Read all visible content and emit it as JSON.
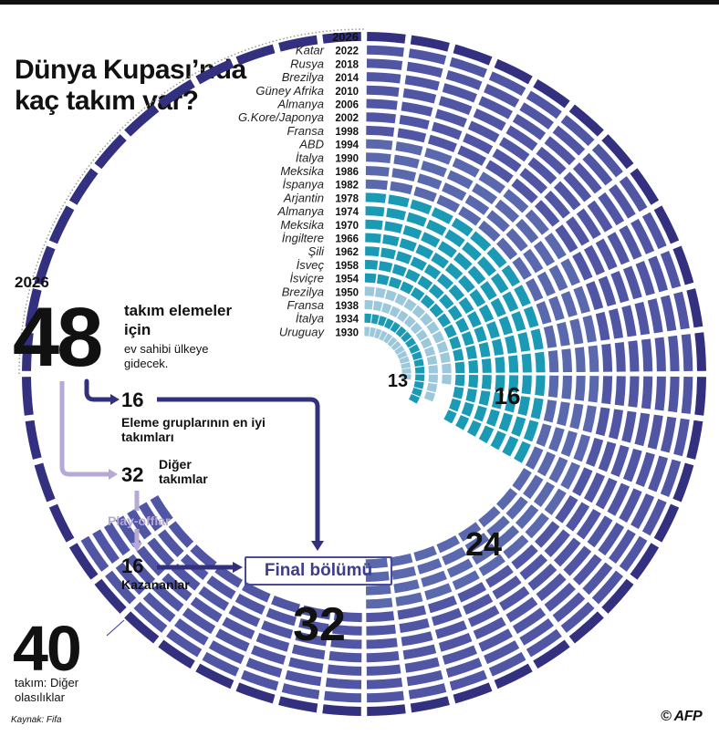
{
  "title_lines": [
    "Dünya Kupası’nda",
    "kaç takım var?"
  ],
  "colors": {
    "t13": "#9cc8dc",
    "t16": "#1a9ab5",
    "t24": "#5a69ad",
    "t32": "#5056a4",
    "t48": "#33307f",
    "purple_light": "#b6a9d6",
    "navy": "#3d3d8f",
    "dotted": "#999999"
  },
  "chart_data": {
    "type": "radial bar",
    "tournaments": [
      {
        "host": "",
        "year": "2026",
        "teams": 48
      },
      {
        "host": "Katar",
        "year": "2022",
        "teams": 32
      },
      {
        "host": "Rusya",
        "year": "2018",
        "teams": 32
      },
      {
        "host": "Brezilya",
        "year": "2014",
        "teams": 32
      },
      {
        "host": "Güney Afrika",
        "year": "2010",
        "teams": 32
      },
      {
        "host": "Almanya",
        "year": "2006",
        "teams": 32
      },
      {
        "host": "G.Kore/Japonya",
        "year": "2002",
        "teams": 32
      },
      {
        "host": "Fransa",
        "year": "1998",
        "teams": 32
      },
      {
        "host": "ABD",
        "year": "1994",
        "teams": 24
      },
      {
        "host": "İtalya",
        "year": "1990",
        "teams": 24
      },
      {
        "host": "Meksika",
        "year": "1986",
        "teams": 24
      },
      {
        "host": "İspanya",
        "year": "1982",
        "teams": 24
      },
      {
        "host": "Arjantin",
        "year": "1978",
        "teams": 16
      },
      {
        "host": "Almanya",
        "year": "1974",
        "teams": 16
      },
      {
        "host": "Meksika",
        "year": "1970",
        "teams": 16
      },
      {
        "host": "İngiltere",
        "year": "1966",
        "teams": 16
      },
      {
        "host": "Şili",
        "year": "1962",
        "teams": 16
      },
      {
        "host": "İsveç",
        "year": "1958",
        "teams": 16
      },
      {
        "host": "İsviçre",
        "year": "1954",
        "teams": 16
      },
      {
        "host": "Brezilya",
        "year": "1950",
        "teams": 13
      },
      {
        "host": "Fransa",
        "year": "1938",
        "teams": 15
      },
      {
        "host": "İtalya",
        "year": "1934",
        "teams": 16
      },
      {
        "host": "Uruguay",
        "year": "1930",
        "teams": 13
      }
    ],
    "count_labels": [
      "13",
      "16",
      "24",
      "32"
    ]
  },
  "info": {
    "year": "2026",
    "total": "48",
    "total_text_bold": "takım elemeler için",
    "total_text_small": "ev sahibi ülkeye gidecek.",
    "best_count": "16",
    "best_label": "Eleme gruplarının en iyi takımları",
    "other_count": "32",
    "other_label": "Diğer takımlar",
    "playoff_label": "Play-offlar",
    "winner_count": "16",
    "winner_label": "Kazananlar",
    "final_label": "Final bölümü",
    "alt_count": "40",
    "alt_label": "takım: Diğer olasılıklar"
  },
  "source": "Kaynak: Fifa",
  "logo": "© AFP"
}
